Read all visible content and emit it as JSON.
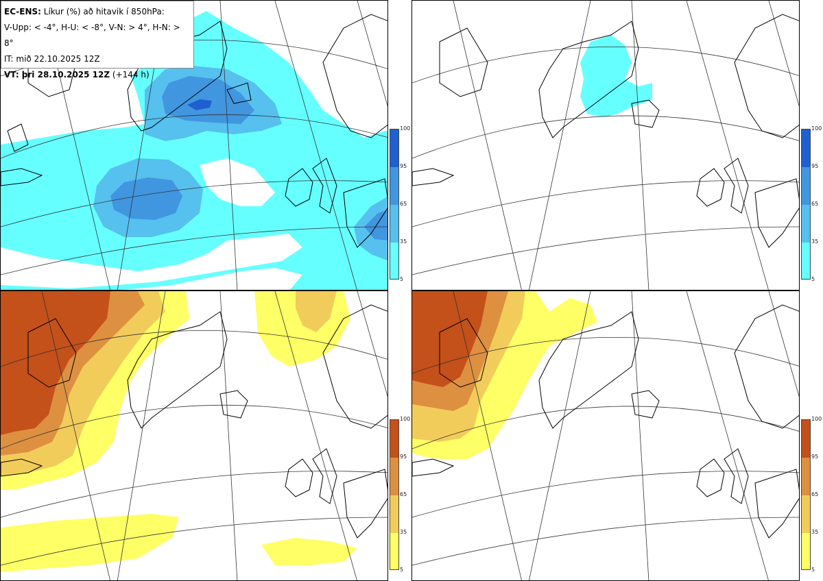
{
  "header": {
    "model": "EC-ENS:",
    "title": "Líkur (%) að hitavik í 850hPa:",
    "thresholds": "V-Upp: < -4°, H-U: < -8°, V-N: > 4°, H-N: > 8°",
    "issue_time": "IT: mið 22.10.2025 12Z",
    "valid_label": "VT: þri 28.10.2025 12Z",
    "lead": "(+144 h)"
  },
  "colors": {
    "cold": [
      "#66ffff",
      "#56c0ee",
      "#4196e0",
      "#1f60d0"
    ],
    "warm": [
      "#ffff66",
      "#f2cc5b",
      "#dd9040",
      "#c4501a"
    ],
    "land_outline": "#000000",
    "grid": "#333333"
  },
  "legends": {
    "cold": {
      "ticks": [
        "100",
        "95",
        "65",
        "35",
        "5"
      ]
    },
    "warm": {
      "ticks": [
        "100",
        "95",
        "65",
        "35",
        "5"
      ]
    }
  },
  "panels": [
    {
      "id": "V-Upp",
      "scheme": "cold"
    },
    {
      "id": "H-U",
      "scheme": "cold"
    },
    {
      "id": "V-N",
      "scheme": "warm"
    },
    {
      "id": "H-N",
      "scheme": "warm"
    }
  ]
}
